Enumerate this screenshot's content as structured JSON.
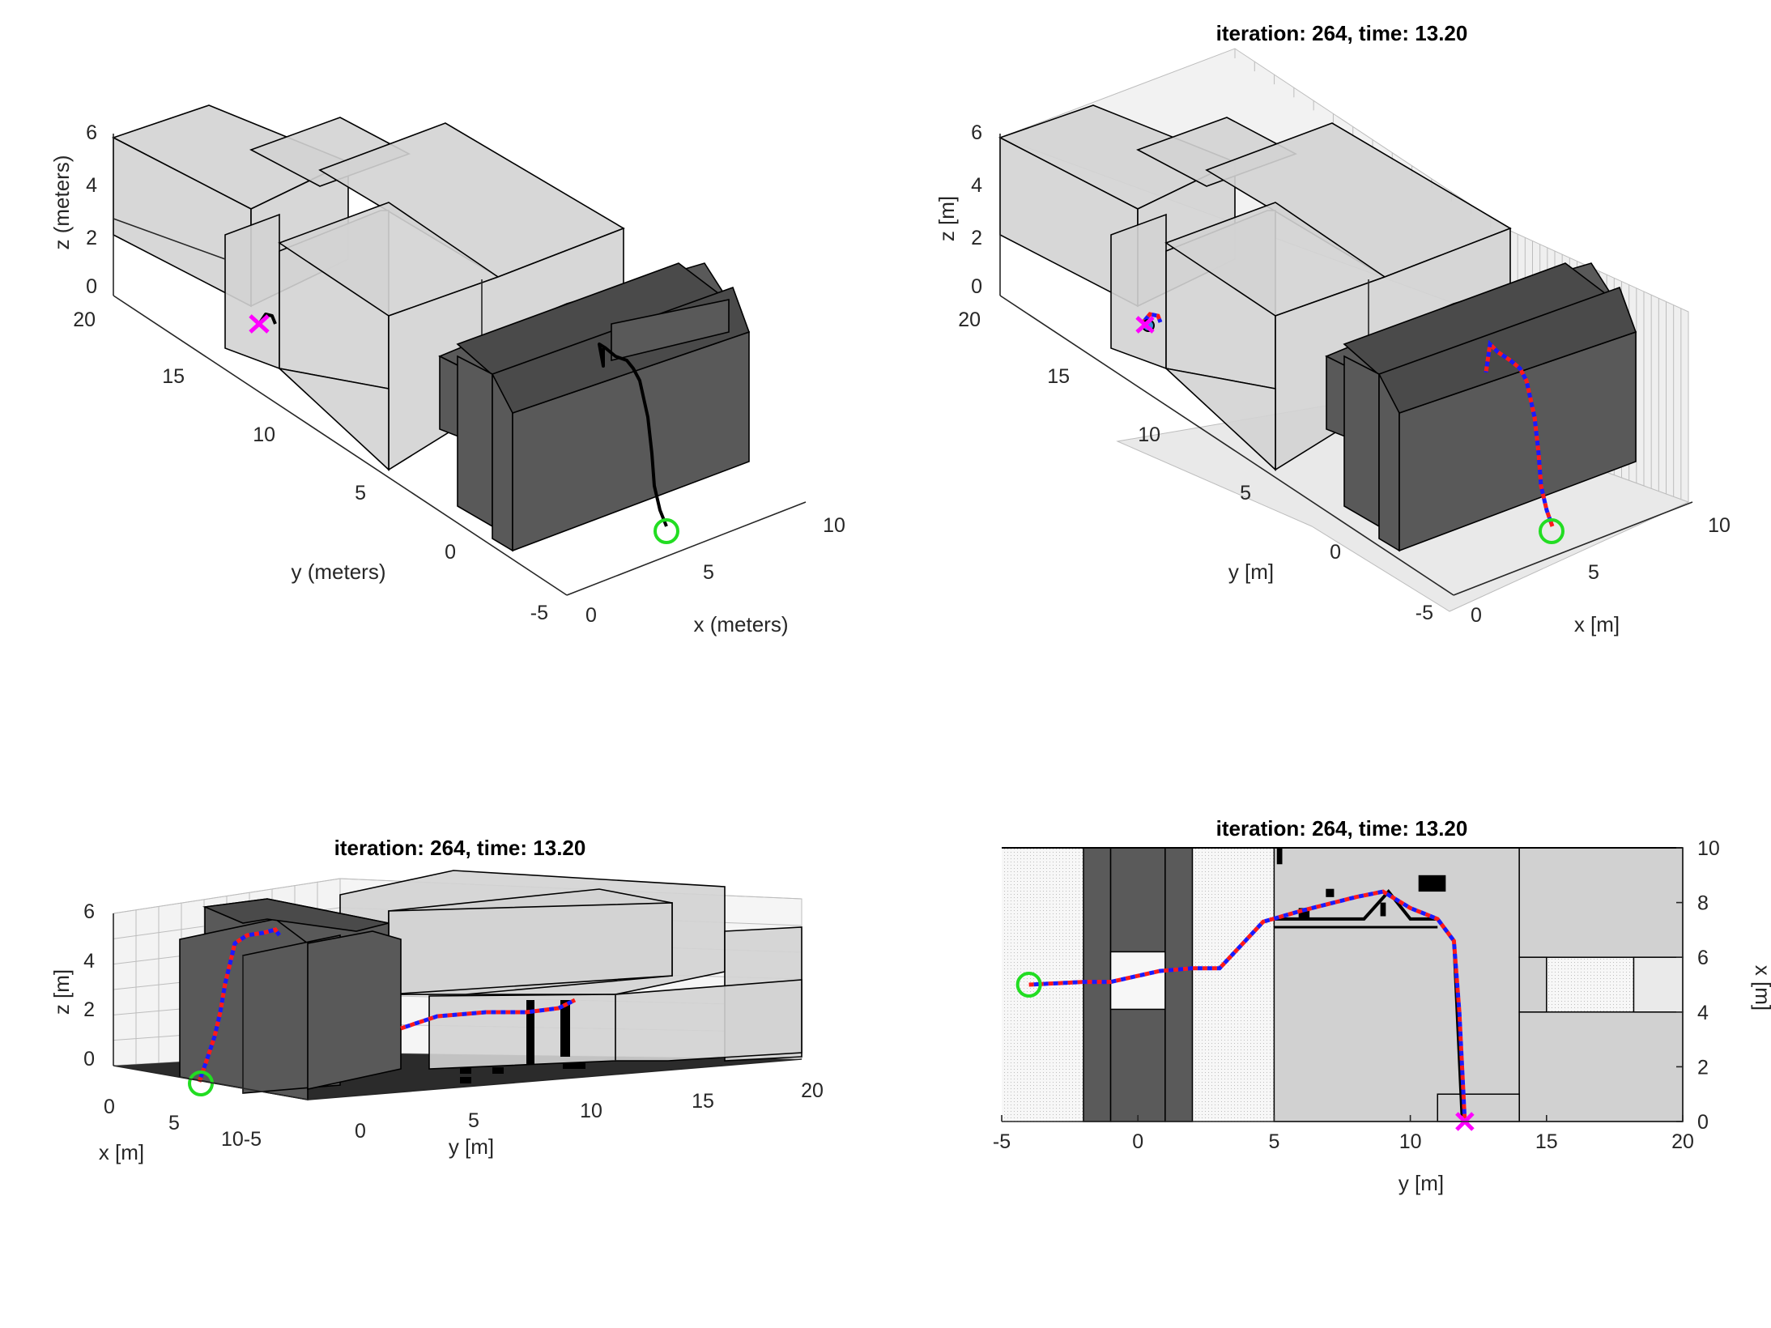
{
  "chart_data": [
    {
      "type": "3d-scene",
      "title": "",
      "xlabel": "x (meters)",
      "ylabel": "y (meters)",
      "zlabel": "z (meters)",
      "xticks": [
        "0",
        "5",
        "10"
      ],
      "yticks": [
        "-5",
        "0",
        "5",
        "10",
        "15",
        "20"
      ],
      "zticks": [
        "0",
        "2",
        "4",
        "6"
      ],
      "xlim": [
        0,
        10
      ],
      "ylim": [
        -5,
        20
      ],
      "zlim": [
        0,
        6
      ],
      "markers": {
        "start": "green circle",
        "goal": "magenta x"
      },
      "colors": {
        "path": "#000000",
        "start": "#22dd22",
        "goal": "#ff00ff"
      }
    },
    {
      "type": "3d-scene",
      "title": "iteration: 264, time: 13.20",
      "xlabel": "x [m]",
      "ylabel": "y [m]",
      "zlabel": "z [m]",
      "xticks": [
        "0",
        "5",
        "10"
      ],
      "yticks": [
        "-5",
        "0",
        "5",
        "10",
        "15",
        "20"
      ],
      "zticks": [
        "0",
        "2",
        "4",
        "6"
      ],
      "xlim": [
        0,
        10
      ],
      "ylim": [
        -5,
        20
      ],
      "zlim": [
        0,
        6
      ],
      "colors": {
        "path_a": "#ff1a1a",
        "path_b": "#1a1aff",
        "start": "#22dd22",
        "goal": "#ff00ff"
      }
    },
    {
      "type": "3d-scene",
      "title": "iteration: 264, time: 13.20",
      "xlabel": "x [m]",
      "ylabel": "y [m]",
      "zlabel": "z [m]",
      "xticks": [
        "0",
        "5",
        "10"
      ],
      "xtick_last_joined": "10-5",
      "yticks": [
        "0",
        "5",
        "10",
        "15",
        "20"
      ],
      "zticks": [
        "0",
        "2",
        "4",
        "6"
      ],
      "xlim": [
        0,
        10
      ],
      "ylim": [
        -5,
        20
      ],
      "zlim": [
        0,
        6
      ]
    },
    {
      "type": "2d-map",
      "title": "iteration: 264, time: 13.20",
      "xlabel": "y [m]",
      "ylabel": "x [m]",
      "xticks": [
        "-5",
        "0",
        "5",
        "10",
        "15",
        "20"
      ],
      "yticks": [
        "0",
        "2",
        "4",
        "6",
        "8",
        "10"
      ],
      "xlim": [
        -5,
        20
      ],
      "ylim": [
        0,
        10
      ],
      "start": {
        "y": -4,
        "x": 5
      },
      "goal": {
        "y": 12,
        "x": 0
      },
      "path": [
        {
          "y": -4,
          "x": 5
        },
        {
          "y": -2,
          "x": 5.1
        },
        {
          "y": -1,
          "x": 5.1
        },
        {
          "y": 0.8,
          "x": 5.5
        },
        {
          "y": 2,
          "x": 5.6
        },
        {
          "y": 3,
          "x": 5.6
        },
        {
          "y": 4.6,
          "x": 7.3
        },
        {
          "y": 6,
          "x": 7.7
        },
        {
          "y": 8,
          "x": 8.2
        },
        {
          "y": 9,
          "x": 8.4
        },
        {
          "y": 10,
          "x": 7.8
        },
        {
          "y": 11,
          "x": 7.4
        },
        {
          "y": 11.6,
          "x": 6.6
        },
        {
          "y": 11.8,
          "x": 4
        },
        {
          "y": 12,
          "x": 0
        }
      ]
    }
  ]
}
